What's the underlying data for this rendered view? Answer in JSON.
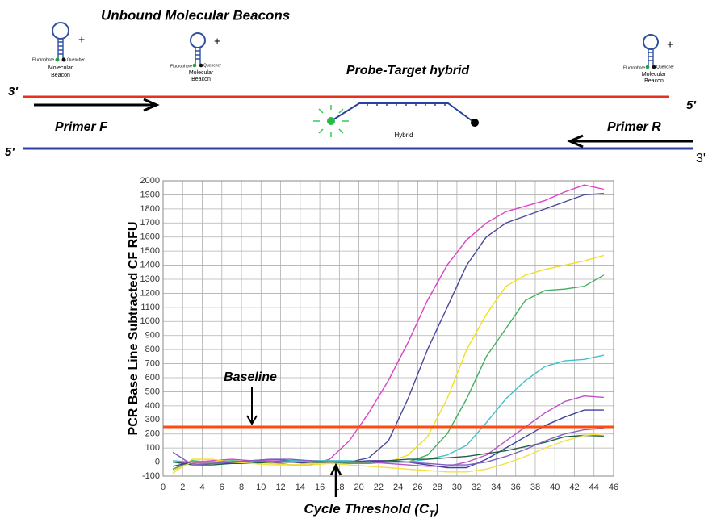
{
  "diagram": {
    "title": "Unbound Molecular Beacons",
    "hybrid_title": "Probe-Target hybrid",
    "fluorophore": "Fluorophore",
    "quencher": "Quencher",
    "beacon_line1": "Molecular",
    "beacon_line2": "Beacon",
    "plus": "+",
    "top_left_end": "3'",
    "top_right_end": "5'",
    "bottom_left_end": "5'",
    "bottom_right_end": "3'",
    "primer_f": "Primer F",
    "primer_r": "Primer R",
    "hybrid": "Hybrid"
  },
  "chart_data": {
    "type": "line",
    "ylabel": "PCR Base Line Subtracted CF RFU",
    "xlabel_main": "Cycle Threshold (C",
    "xlabel_sub": "T",
    "xlabel_end": ")",
    "baseline_label": "Baseline",
    "threshold": 250,
    "threshold_color": "#ff4a10",
    "grid": true,
    "xlim": [
      0,
      46
    ],
    "xticks": [
      0,
      2,
      4,
      6,
      8,
      10,
      12,
      14,
      16,
      18,
      20,
      22,
      24,
      26,
      28,
      30,
      32,
      34,
      36,
      38,
      40,
      42,
      44,
      46
    ],
    "ylim": [
      -100,
      2000
    ],
    "yticks": [
      -100,
      0,
      100,
      200,
      300,
      400,
      500,
      600,
      700,
      800,
      900,
      1000,
      1100,
      1200,
      1300,
      1400,
      1500,
      1600,
      1700,
      1800,
      1900,
      2000
    ],
    "x": [
      1,
      3,
      5,
      7,
      9,
      11,
      13,
      15,
      17,
      19,
      21,
      23,
      25,
      27,
      29,
      31,
      33,
      35,
      37,
      39,
      41,
      43,
      45
    ],
    "series": [
      {
        "color": "#e040c8",
        "values": [
          -50,
          0,
          10,
          20,
          10,
          0,
          -20,
          -20,
          20,
          150,
          350,
          580,
          850,
          1150,
          1400,
          1580,
          1700,
          1780,
          1820,
          1860,
          1920,
          1970,
          1940
        ]
      },
      {
        "color": "#4a4a9a",
        "values": [
          0,
          -10,
          0,
          0,
          10,
          20,
          10,
          10,
          0,
          0,
          30,
          150,
          450,
          800,
          1100,
          1400,
          1600,
          1700,
          1750,
          1800,
          1850,
          1900,
          1910
        ]
      },
      {
        "color": "#f0e020",
        "values": [
          -80,
          20,
          20,
          0,
          0,
          -10,
          -20,
          -20,
          -10,
          -10,
          0,
          0,
          50,
          180,
          450,
          800,
          1050,
          1250,
          1330,
          1370,
          1400,
          1430,
          1470
        ]
      },
      {
        "color": "#40b060",
        "values": [
          -50,
          10,
          0,
          10,
          0,
          0,
          0,
          0,
          0,
          -10,
          -10,
          0,
          0,
          50,
          200,
          450,
          750,
          950,
          1150,
          1220,
          1230,
          1250,
          1330
        ]
      },
      {
        "color": "#40c0c8",
        "values": [
          10,
          0,
          -10,
          -10,
          0,
          0,
          10,
          10,
          10,
          10,
          0,
          0,
          0,
          20,
          50,
          120,
          280,
          450,
          580,
          680,
          720,
          730,
          760
        ]
      },
      {
        "color": "#c050c8",
        "values": [
          0,
          -10,
          0,
          0,
          10,
          10,
          0,
          0,
          0,
          0,
          0,
          -10,
          -20,
          -30,
          -30,
          0,
          50,
          150,
          250,
          350,
          430,
          470,
          460
        ]
      },
      {
        "color": "#4040a0",
        "values": [
          -30,
          0,
          0,
          -10,
          0,
          0,
          0,
          -10,
          0,
          0,
          10,
          10,
          0,
          -20,
          -40,
          -40,
          20,
          100,
          180,
          260,
          320,
          370,
          370
        ]
      },
      {
        "color": "#206040",
        "values": [
          0,
          -20,
          -20,
          -10,
          -10,
          0,
          0,
          0,
          0,
          0,
          0,
          10,
          20,
          20,
          30,
          40,
          60,
          80,
          110,
          140,
          180,
          190,
          185
        ]
      },
      {
        "color": "#f4e040",
        "values": [
          -60,
          0,
          0,
          0,
          -10,
          -20,
          -20,
          -10,
          -10,
          -20,
          -30,
          -40,
          -50,
          -60,
          -70,
          -70,
          -50,
          -10,
          40,
          100,
          150,
          190,
          200
        ]
      },
      {
        "color": "#8060c0",
        "values": [
          70,
          -20,
          -10,
          0,
          10,
          20,
          20,
          10,
          0,
          0,
          0,
          0,
          0,
          -10,
          -20,
          -20,
          0,
          40,
          90,
          150,
          200,
          230,
          240
        ]
      }
    ]
  }
}
